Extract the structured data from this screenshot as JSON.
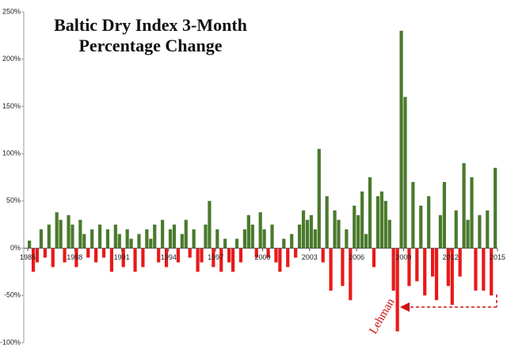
{
  "chart_data": {
    "type": "bar",
    "title": [
      "Baltic Dry Index 3-Month",
      "Percentage Change"
    ],
    "annotation": "Lehman",
    "xlim": [
      1985,
      2015
    ],
    "xticks": [
      1985,
      1988,
      1991,
      1994,
      1997,
      2000,
      2003,
      2006,
      2009,
      2012,
      2015
    ],
    "ylim": [
      -100,
      250
    ],
    "yticks": [
      {
        "value": -100,
        "label": "-100%"
      },
      {
        "value": -50,
        "label": "-50%"
      },
      {
        "value": 0,
        "label": "0%"
      },
      {
        "value": 50,
        "label": "50%"
      },
      {
        "value": 100,
        "label": "100%"
      },
      {
        "value": 150,
        "label": "150%"
      },
      {
        "value": 200,
        "label": "200%"
      },
      {
        "value": 250,
        "label": "250%"
      }
    ],
    "grid": false,
    "positive_color": "#4a7a2c",
    "negative_color": "#e8191a",
    "annotation_color": "#d01010",
    "x": [
      1985,
      1985.25,
      1985.5,
      1985.75,
      1986,
      1986.25,
      1986.5,
      1986.75,
      1987,
      1987.25,
      1987.5,
      1987.75,
      1988,
      1988.25,
      1988.5,
      1988.75,
      1989,
      1989.25,
      1989.5,
      1989.75,
      1990,
      1990.25,
      1990.5,
      1990.75,
      1991,
      1991.25,
      1991.5,
      1991.75,
      1992,
      1992.25,
      1992.5,
      1992.75,
      1993,
      1993.25,
      1993.5,
      1993.75,
      1994,
      1994.25,
      1994.5,
      1994.75,
      1995,
      1995.25,
      1995.5,
      1995.75,
      1996,
      1996.25,
      1996.5,
      1996.75,
      1997,
      1997.25,
      1997.5,
      1997.75,
      1998,
      1998.25,
      1998.5,
      1998.75,
      1999,
      1999.25,
      1999.5,
      1999.75,
      2000,
      2000.25,
      2000.5,
      2000.75,
      2001,
      2001.25,
      2001.5,
      2001.75,
      2002,
      2002.25,
      2002.5,
      2002.75,
      2003,
      2003.25,
      2003.5,
      2003.75,
      2004,
      2004.25,
      2004.5,
      2004.75,
      2005,
      2005.25,
      2005.5,
      2005.75,
      2006,
      2006.25,
      2006.5,
      2006.75,
      2007,
      2007.25,
      2007.5,
      2007.75,
      2008,
      2008.25,
      2008.5,
      2008.75,
      2009,
      2009.25,
      2009.5,
      2009.75,
      2010,
      2010.25,
      2010.5,
      2010.75,
      2011,
      2011.25,
      2011.5,
      2011.75,
      2012,
      2012.25,
      2012.5,
      2012.75,
      2013,
      2013.25,
      2013.5,
      2013.75,
      2014,
      2014.25,
      2014.5,
      2014.75
    ],
    "values": [
      8,
      -25,
      -15,
      20,
      -10,
      25,
      -20,
      38,
      30,
      -15,
      35,
      25,
      -20,
      30,
      15,
      -10,
      20,
      -15,
      25,
      -10,
      20,
      -25,
      25,
      15,
      -20,
      20,
      10,
      -25,
      15,
      -20,
      20,
      10,
      25,
      -15,
      30,
      -20,
      20,
      25,
      -15,
      15,
      30,
      -10,
      20,
      -25,
      -15,
      25,
      50,
      -20,
      20,
      -25,
      10,
      -15,
      -25,
      10,
      -15,
      20,
      35,
      25,
      -10,
      38,
      20,
      -10,
      25,
      -15,
      -25,
      10,
      -20,
      15,
      -10,
      25,
      40,
      30,
      35,
      20,
      105,
      -15,
      55,
      -45,
      40,
      30,
      -40,
      20,
      -55,
      45,
      35,
      60,
      15,
      75,
      -20,
      55,
      60,
      50,
      30,
      -45,
      -88,
      230,
      160,
      -40,
      70,
      -35,
      45,
      -50,
      55,
      -30,
      -55,
      35,
      70,
      -40,
      -60,
      40,
      -30,
      90,
      30,
      75,
      -45,
      35,
      -45,
      40,
      -50,
      85
    ]
  }
}
